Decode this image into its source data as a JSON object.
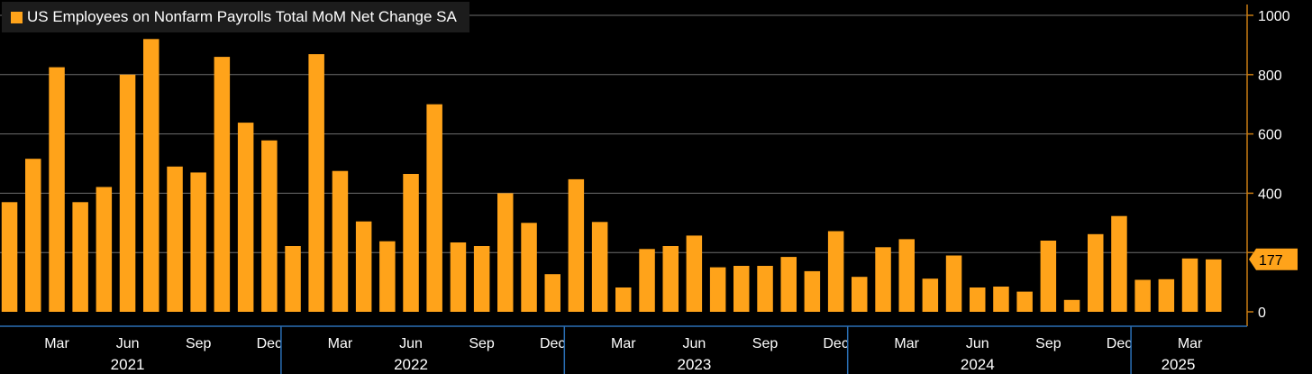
{
  "legend": {
    "label": "US Employees on Nonfarm Payrolls Total MoM Net Change SA",
    "color": "#ffa31a"
  },
  "last_value_tag": "177",
  "chart_data": {
    "type": "bar",
    "title": "US Employees on Nonfarm Payrolls Total MoM Net Change SA",
    "xlabel": "",
    "ylabel": "",
    "ylim": [
      0,
      1000
    ],
    "y_ticks": [
      0,
      200,
      400,
      600,
      800,
      1000
    ],
    "y_tick_labels": [
      "0",
      "",
      "400",
      "600",
      "800",
      "1000"
    ],
    "grid": true,
    "legend_position": "top-left",
    "y_axis_side": "right",
    "bar_color": "#ffa31a",
    "categories": [
      "2021-01",
      "2021-02",
      "2021-03",
      "2021-04",
      "2021-05",
      "2021-06",
      "2021-07",
      "2021-08",
      "2021-09",
      "2021-10",
      "2021-11",
      "2021-12",
      "2022-01",
      "2022-02",
      "2022-03",
      "2022-04",
      "2022-05",
      "2022-06",
      "2022-07",
      "2022-08",
      "2022-09",
      "2022-10",
      "2022-11",
      "2022-12",
      "2023-01",
      "2023-02",
      "2023-03",
      "2023-04",
      "2023-05",
      "2023-06",
      "2023-07",
      "2023-08",
      "2023-09",
      "2023-10",
      "2023-11",
      "2023-12",
      "2024-01",
      "2024-02",
      "2024-03",
      "2024-04",
      "2024-05",
      "2024-06",
      "2024-07",
      "2024-08",
      "2024-09",
      "2024-10",
      "2024-11",
      "2024-12",
      "2025-01",
      "2025-02",
      "2025-03",
      "2025-04"
    ],
    "values": [
      370,
      516,
      825,
      370,
      421,
      800,
      920,
      490,
      470,
      860,
      638,
      578,
      222,
      869,
      475,
      305,
      238,
      465,
      700,
      234,
      222,
      400,
      300,
      127,
      447,
      303,
      82,
      212,
      222,
      257,
      150,
      155,
      155,
      185,
      137,
      272,
      118,
      218,
      245,
      112,
      190,
      82,
      85,
      68,
      240,
      40,
      262,
      323,
      108,
      110,
      180,
      177
    ],
    "month_ticks": [
      {
        "index": 2,
        "label": "Mar"
      },
      {
        "index": 5,
        "label": "Jun"
      },
      {
        "index": 8,
        "label": "Sep"
      },
      {
        "index": 11,
        "label": "Dec"
      },
      {
        "index": 14,
        "label": "Mar"
      },
      {
        "index": 17,
        "label": "Jun"
      },
      {
        "index": 20,
        "label": "Sep"
      },
      {
        "index": 23,
        "label": "Dec"
      },
      {
        "index": 26,
        "label": "Mar"
      },
      {
        "index": 29,
        "label": "Jun"
      },
      {
        "index": 32,
        "label": "Sep"
      },
      {
        "index": 35,
        "label": "Dec"
      },
      {
        "index": 38,
        "label": "Mar"
      },
      {
        "index": 41,
        "label": "Jun"
      },
      {
        "index": 44,
        "label": "Sep"
      },
      {
        "index": 47,
        "label": "Dec"
      },
      {
        "index": 50,
        "label": "Mar"
      }
    ],
    "year_labels": [
      {
        "label": "2021",
        "center_index": 5
      },
      {
        "label": "2022",
        "center_index": 17
      },
      {
        "label": "2023",
        "center_index": 29
      },
      {
        "label": "2024",
        "center_index": 41
      },
      {
        "label": "2025",
        "center_index": 49.5
      }
    ],
    "year_boundaries": [
      11.5,
      23.5,
      35.5,
      47.5
    ]
  }
}
